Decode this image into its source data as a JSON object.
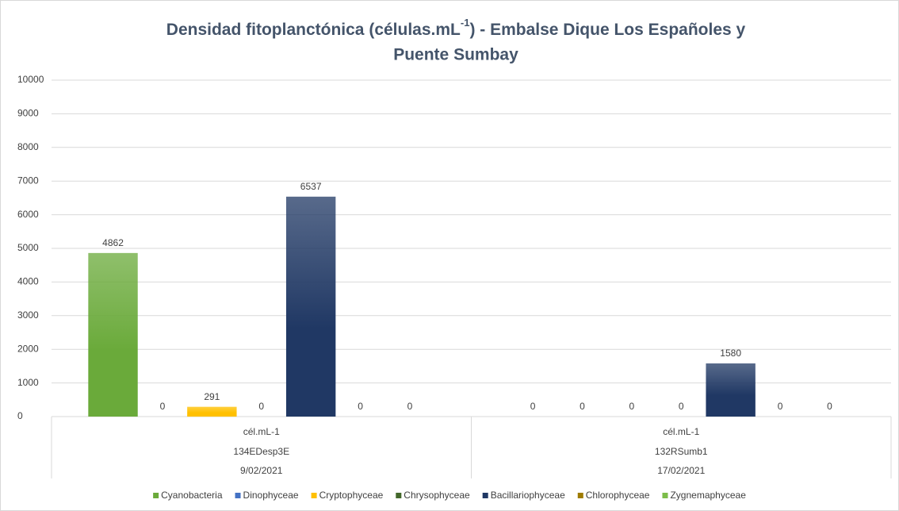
{
  "chart_data": {
    "type": "bar",
    "title": [
      "Densidad fitoplanctónica (células.mL",
      "-1",
      ") - Embalse  Dique Los Españoles y",
      "Puente Sumbay"
    ],
    "categories": [
      "134EDesp3E",
      "132RSumb1"
    ],
    "category_units": [
      "cél.mL-1",
      "cél.mL-1"
    ],
    "category_dates": [
      "9/02/2021",
      "17/02/2021"
    ],
    "series": [
      {
        "name": "Cyanobacteria",
        "color": "#6aaa3a",
        "values": [
          4862,
          0
        ]
      },
      {
        "name": "Dinophyceae",
        "color": "#4472c4",
        "values": [
          0,
          0
        ]
      },
      {
        "name": "Cryptophyceae",
        "color": "#ffc000",
        "values": [
          291,
          0
        ]
      },
      {
        "name": "Chrysophyceae",
        "color": "#43682b",
        "values": [
          0,
          0
        ]
      },
      {
        "name": "Bacillariophyceae",
        "color": "#203864",
        "values": [
          6537,
          1580
        ]
      },
      {
        "name": "Chlorophyceae",
        "color": "#9e7b00",
        "values": [
          0,
          0
        ]
      },
      {
        "name": "Zygnemaphyceae",
        "color": "#7cbd4a",
        "values": [
          0,
          0
        ]
      }
    ],
    "ylim": [
      0,
      10000
    ],
    "yticks": [
      0,
      1000,
      2000,
      3000,
      4000,
      5000,
      6000,
      7000,
      8000,
      9000,
      10000
    ],
    "grid": true,
    "legend": "bottom"
  }
}
